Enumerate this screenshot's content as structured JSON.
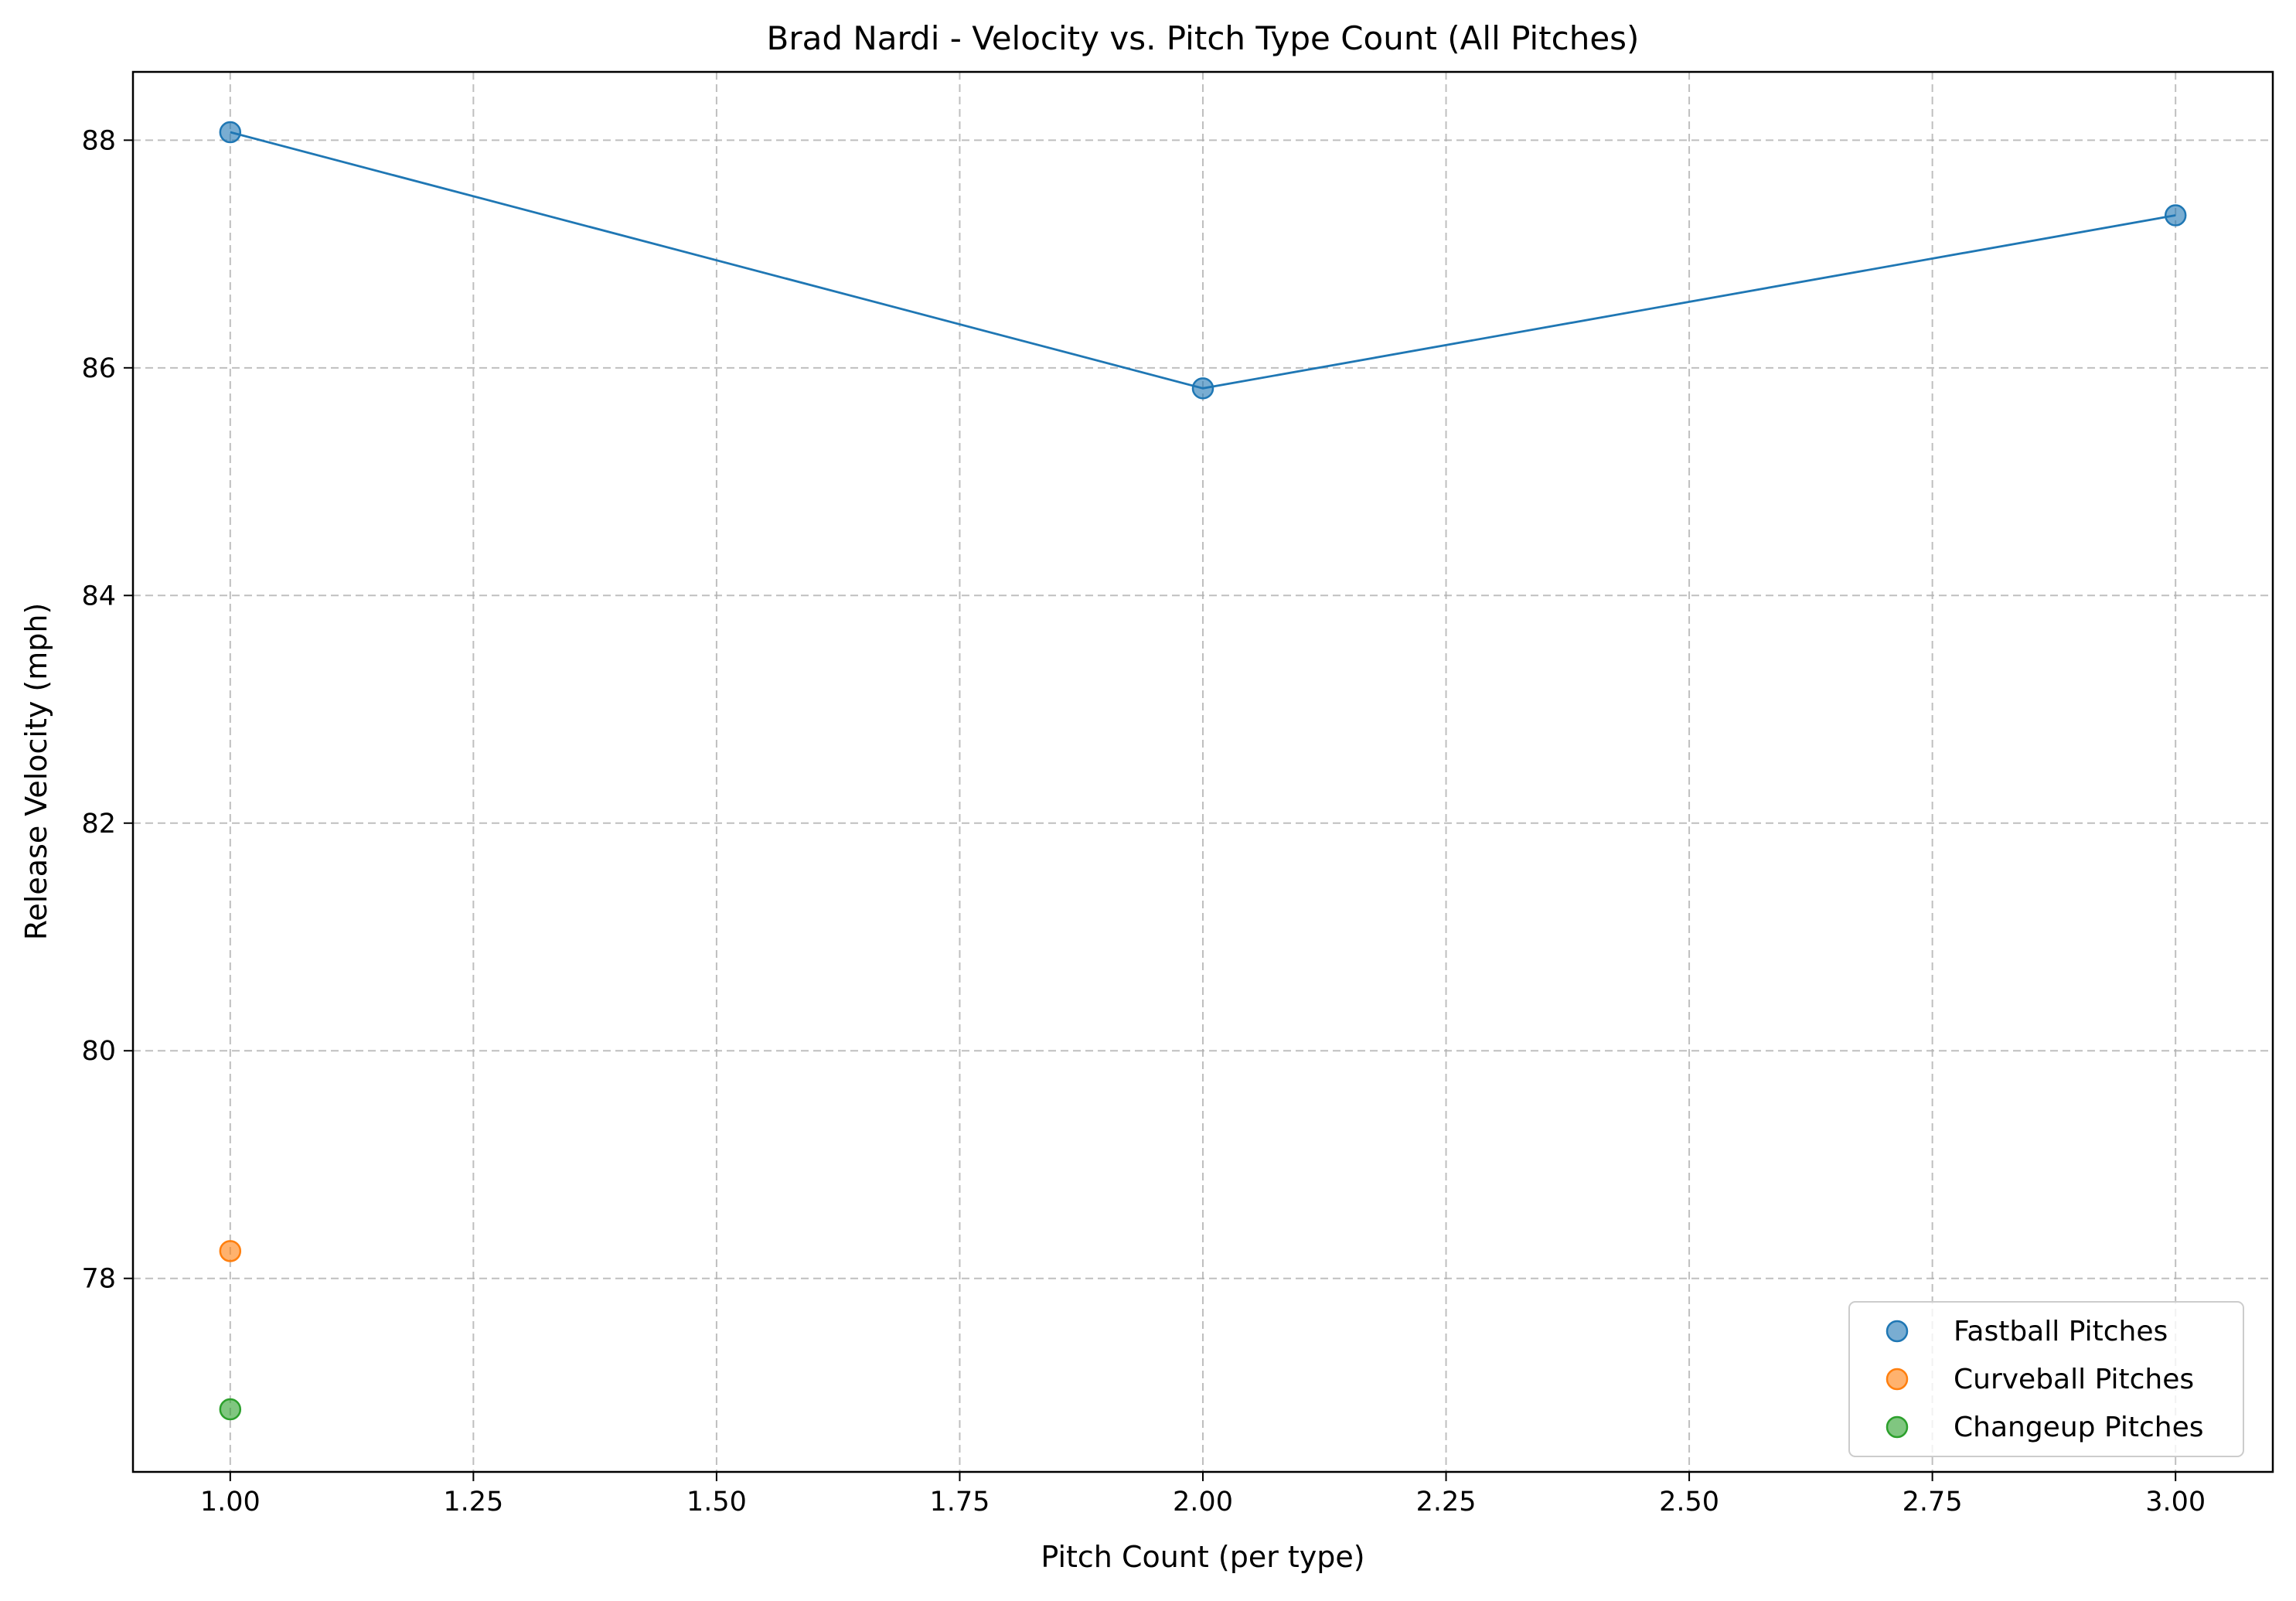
{
  "chart_data": {
    "type": "scatter",
    "title": "Brad Nardi - Velocity vs. Pitch Type Count (All Pitches)",
    "xlabel": "Pitch Count (per type)",
    "ylabel": "Release Velocity (mph)",
    "xlim": [
      0.9,
      3.1
    ],
    "ylim": [
      76.3,
      88.6
    ],
    "x_ticks": [
      1.0,
      1.25,
      1.5,
      1.75,
      2.0,
      2.25,
      2.5,
      2.75,
      3.0
    ],
    "x_tick_labels": [
      "1.00",
      "1.25",
      "1.50",
      "1.75",
      "2.00",
      "2.25",
      "2.50",
      "2.75",
      "3.00"
    ],
    "y_ticks": [
      78,
      80,
      82,
      84,
      86,
      88
    ],
    "y_tick_labels": [
      "78",
      "80",
      "82",
      "84",
      "86",
      "88"
    ],
    "grid": true,
    "legend_position": "bottom-right",
    "series": [
      {
        "name": "Fastball Pitches",
        "color": "#1f77b4",
        "connect_line": true,
        "x": [
          1,
          2,
          3
        ],
        "y": [
          88.07,
          85.82,
          87.34
        ]
      },
      {
        "name": "Curveball Pitches",
        "color": "#ff7f0e",
        "connect_line": false,
        "x": [
          1
        ],
        "y": [
          78.24
        ]
      },
      {
        "name": "Changeup Pitches",
        "color": "#2ca02c",
        "connect_line": false,
        "x": [
          1
        ],
        "y": [
          76.85
        ]
      }
    ]
  }
}
